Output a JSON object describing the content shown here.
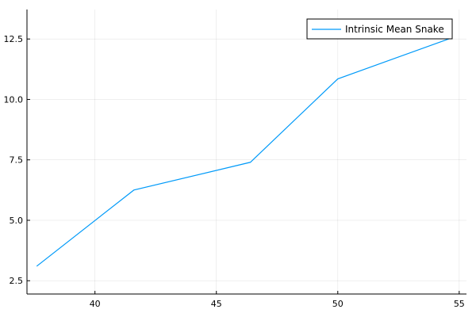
{
  "chart_data": {
    "type": "line",
    "title": "",
    "xlabel": "",
    "ylabel": "",
    "xlim": [
      37.2,
      55.3
    ],
    "ylim": [
      1.95,
      13.72
    ],
    "x_ticks": [
      40,
      45,
      50,
      55
    ],
    "y_ticks": [
      2.5,
      5.0,
      7.5,
      10.0,
      12.5
    ],
    "x_tick_labels": [
      "40",
      "45",
      "50",
      "55"
    ],
    "y_tick_labels": [
      "2.5",
      "5.0",
      "7.5",
      "10.0",
      "12.5"
    ],
    "grid": true,
    "legend": {
      "position": "top-right"
    },
    "series": [
      {
        "name": "Intrinsic Mean Snake",
        "color": "#009af9",
        "x": [
          37.6,
          41.6,
          46.4,
          50.0,
          54.7
        ],
        "y": [
          3.1,
          6.25,
          7.4,
          10.85,
          12.55
        ]
      }
    ]
  }
}
